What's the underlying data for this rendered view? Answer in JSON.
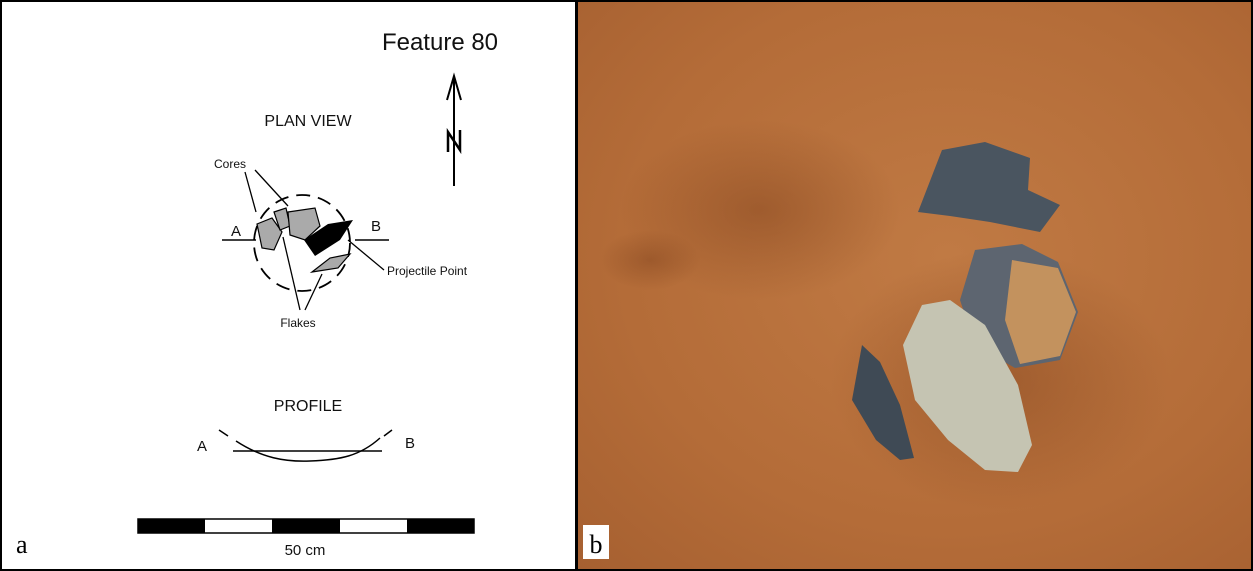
{
  "panel_a": {
    "title": "Feature 80",
    "plan_view": {
      "label": "PLAN VIEW",
      "cores": "Cores",
      "projectile_point": "Projectile Point",
      "flakes": "Flakes",
      "end_a": "A",
      "end_b": "B"
    },
    "profile": {
      "label": "PROFILE",
      "end_a": "A",
      "end_b": "B"
    },
    "scale_bar": {
      "label": "50 cm"
    },
    "panel_label": "a"
  },
  "panel_b": {
    "panel_label": "b"
  }
}
